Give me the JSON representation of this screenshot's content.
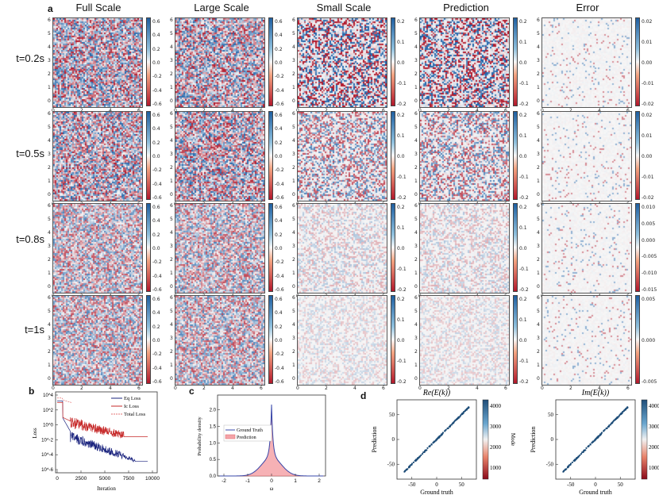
{
  "panel_labels": {
    "a": "a",
    "b": "b",
    "c": "c",
    "d": "d"
  },
  "column_titles": [
    "Full Scale",
    "Large Scale",
    "Small Scale",
    "Prediction",
    "Error"
  ],
  "rows": [
    {
      "label": "t=0.2s",
      "cbars": [
        [
          "0.6",
          "0.4",
          "0.2",
          "0.0",
          "-0.2",
          "-0.4",
          "-0.6"
        ],
        [
          "0.6",
          "0.4",
          "0.2",
          "0.0",
          "-0.2",
          "-0.4",
          "-0.6"
        ],
        [
          "0.2",
          "0.1",
          "0.0",
          "-0.1",
          "-0.2"
        ],
        [
          "0.2",
          "0.1",
          "0.0",
          "-0.1",
          "-0.2"
        ],
        [
          "0.02",
          "0.01",
          "0.00",
          "-0.01",
          "-0.02"
        ]
      ]
    },
    {
      "label": "t=0.5s",
      "cbars": [
        [
          "0.6",
          "0.4",
          "0.2",
          "0.0",
          "-0.2",
          "-0.4",
          "-0.6"
        ],
        [
          "0.6",
          "0.4",
          "0.2",
          "0.0",
          "-0.2",
          "-0.4",
          "-0.6"
        ],
        [
          "0.2",
          "0.1",
          "0.0",
          "-0.1",
          "-0.2"
        ],
        [
          "0.2",
          "0.1",
          "0.0",
          "-0.1",
          "-0.2"
        ],
        [
          "0.02",
          "0.01",
          "0.00",
          "-0.01",
          "-0.02"
        ]
      ]
    },
    {
      "label": "t=0.8s",
      "cbars": [
        [
          "0.6",
          "0.4",
          "0.2",
          "0.0",
          "-0.2",
          "-0.4",
          "-0.6"
        ],
        [
          "0.6",
          "0.4",
          "0.2",
          "0.0",
          "-0.2",
          "-0.4",
          "-0.6"
        ],
        [
          "0.2",
          "0.1",
          "0.0",
          "-0.1",
          "-0.2"
        ],
        [
          "0.2",
          "0.1",
          "0.0",
          "-0.1",
          "-0.2"
        ],
        [
          "0.010",
          "0.005",
          "0.000",
          "-0.005",
          "-0.010",
          "-0.015"
        ]
      ]
    },
    {
      "label": "t=1s",
      "cbars": [
        [
          "0.6",
          "0.4",
          "0.2",
          "0.0",
          "-0.2",
          "-0.4",
          "-0.6"
        ],
        [
          "0.6",
          "0.4",
          "0.2",
          "0.0",
          "-0.2",
          "-0.4",
          "-0.6"
        ],
        [
          "0.2",
          "0.1",
          "0.0",
          "-0.1",
          "-0.2"
        ],
        [
          "0.2",
          "0.1",
          "0.0",
          "-0.1",
          "-0.2"
        ],
        [
          "0.005",
          "0.000",
          "-0.005"
        ]
      ]
    }
  ],
  "field_axis_ticks": [
    "0",
    "2",
    "4",
    "6"
  ],
  "field_axis_yticks": [
    "6",
    "5",
    "4",
    "3",
    "2",
    "1",
    "0"
  ],
  "colors": {
    "pos": "#1f5fa0",
    "neg": "#b2182b",
    "mid": "#f7f7f7"
  },
  "chart_data": [
    {
      "type": "line",
      "panel": "b",
      "xlabel": "Iteration",
      "ylabel": "Loss",
      "xticks": [
        "0",
        "2500",
        "5000",
        "7500",
        "10000"
      ],
      "yticks": [
        "10^4",
        "10^2",
        "10^0",
        "10^-2",
        "10^-4",
        "10^-6"
      ],
      "legend": [
        "Eq Loss",
        "Ic Loss",
        "Total Loss"
      ],
      "series_colors": [
        "#1a237e",
        "#c62828",
        "#e57373"
      ]
    },
    {
      "type": "area",
      "panel": "c",
      "xlabel": "ω",
      "ylabel": "Probability density",
      "xticks": [
        "-2",
        "-1",
        "0",
        "1",
        "2"
      ],
      "yticks": [
        "0.0",
        "0.5",
        "1.0",
        "1.5",
        "2.0"
      ],
      "legend": [
        "Ground Truth",
        "Prediction"
      ],
      "peak": 2.2
    },
    {
      "type": "scatter",
      "panel": "d1",
      "title": "Re(E(k))",
      "xlabel": "Ground truth",
      "ylabel": "Prediction",
      "xticks": [
        "-50",
        "0",
        "50"
      ],
      "yticks": [
        "50",
        "0",
        "-50"
      ],
      "colorbar_label": "Mode",
      "colorbar_ticks": [
        "4000",
        "3000",
        "2000",
        "1000"
      ]
    },
    {
      "type": "scatter",
      "panel": "d2",
      "title": "Im(E(k))",
      "xlabel": "Ground truth",
      "ylabel": "Prediction",
      "xticks": [
        "-50",
        "0",
        "50"
      ],
      "yticks": [
        "50",
        "0",
        "-50"
      ],
      "colorbar_label": "Mode",
      "colorbar_ticks": [
        "4000",
        "3000",
        "2000",
        "1000"
      ]
    }
  ]
}
